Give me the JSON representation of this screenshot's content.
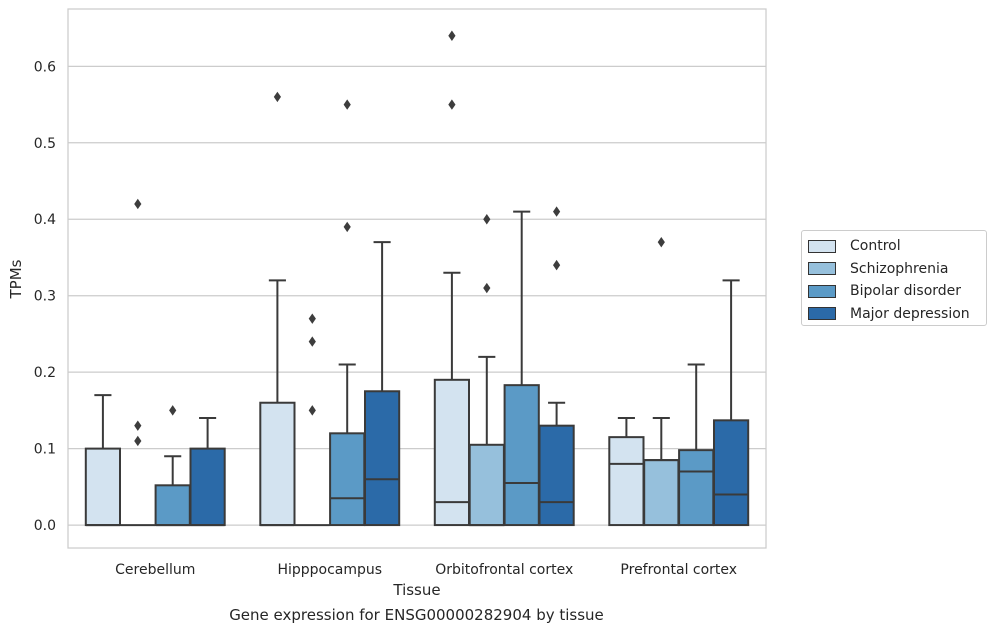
{
  "chart_data": {
    "type": "box",
    "xlabel": "Tissue",
    "ylabel": "TPMs",
    "caption": "Gene expression for ENSG00000282904 by tissue",
    "categories": [
      "Cerebellum",
      "Hipppocampus",
      "Orbitofrontal cortex",
      "Prefrontal cortex"
    ],
    "ylim": [
      -0.03,
      0.675
    ],
    "yticks": [
      "0.0",
      "0.1",
      "0.2",
      "0.3",
      "0.4",
      "0.5",
      "0.6"
    ],
    "grid": true,
    "legend_position": "right",
    "series": [
      {
        "name": "Control",
        "color": "#d3e3f0",
        "boxes": [
          {
            "q1": 0.0,
            "median": 0.0,
            "q3": 0.1,
            "whisker_low": 0.0,
            "whisker_high": 0.17,
            "outliers": []
          },
          {
            "q1": 0.0,
            "median": 0.0,
            "q3": 0.16,
            "whisker_low": 0.0,
            "whisker_high": 0.32,
            "outliers": [
              0.56
            ]
          },
          {
            "q1": 0.0,
            "median": 0.03,
            "q3": 0.19,
            "whisker_low": 0.0,
            "whisker_high": 0.33,
            "outliers": [
              0.55,
              0.64
            ]
          },
          {
            "q1": 0.0,
            "median": 0.08,
            "q3": 0.115,
            "whisker_low": 0.0,
            "whisker_high": 0.14,
            "outliers": []
          }
        ]
      },
      {
        "name": "Schizophrenia",
        "color": "#96c0dc",
        "boxes": [
          {
            "q1": 0.0,
            "median": 0.0,
            "q3": 0.0,
            "whisker_low": 0.0,
            "whisker_high": 0.0,
            "outliers": [
              0.11,
              0.13,
              0.42
            ]
          },
          {
            "q1": 0.0,
            "median": 0.0,
            "q3": 0.0,
            "whisker_low": 0.0,
            "whisker_high": 0.0,
            "outliers": [
              0.15,
              0.24,
              0.27
            ]
          },
          {
            "q1": 0.0,
            "median": 0.0,
            "q3": 0.105,
            "whisker_low": 0.0,
            "whisker_high": 0.22,
            "outliers": [
              0.31,
              0.4
            ]
          },
          {
            "q1": 0.0,
            "median": 0.085,
            "q3": 0.085,
            "whisker_low": 0.0,
            "whisker_high": 0.14,
            "outliers": [
              0.37
            ]
          }
        ]
      },
      {
        "name": "Bipolar disorder",
        "color": "#5b9ac6",
        "boxes": [
          {
            "q1": 0.0,
            "median": 0.0,
            "q3": 0.052,
            "whisker_low": 0.0,
            "whisker_high": 0.09,
            "outliers": [
              0.15
            ]
          },
          {
            "q1": 0.0,
            "median": 0.035,
            "q3": 0.12,
            "whisker_low": 0.0,
            "whisker_high": 0.21,
            "outliers": [
              0.39,
              0.55
            ]
          },
          {
            "q1": 0.0,
            "median": 0.055,
            "q3": 0.183,
            "whisker_low": 0.0,
            "whisker_high": 0.41,
            "outliers": []
          },
          {
            "q1": 0.0,
            "median": 0.07,
            "q3": 0.098,
            "whisker_low": 0.0,
            "whisker_high": 0.21,
            "outliers": []
          }
        ]
      },
      {
        "name": "Major depression",
        "color": "#2b6aa8",
        "boxes": [
          {
            "q1": 0.0,
            "median": 0.0,
            "q3": 0.1,
            "whisker_low": 0.0,
            "whisker_high": 0.14,
            "outliers": []
          },
          {
            "q1": 0.0,
            "median": 0.06,
            "q3": 0.175,
            "whisker_low": 0.0,
            "whisker_high": 0.37,
            "outliers": []
          },
          {
            "q1": 0.0,
            "median": 0.03,
            "q3": 0.13,
            "whisker_low": 0.0,
            "whisker_high": 0.16,
            "outliers": [
              0.34,
              0.41
            ]
          },
          {
            "q1": 0.0,
            "median": 0.04,
            "q3": 0.137,
            "whisker_low": 0.0,
            "whisker_high": 0.32,
            "outliers": []
          }
        ]
      }
    ]
  }
}
